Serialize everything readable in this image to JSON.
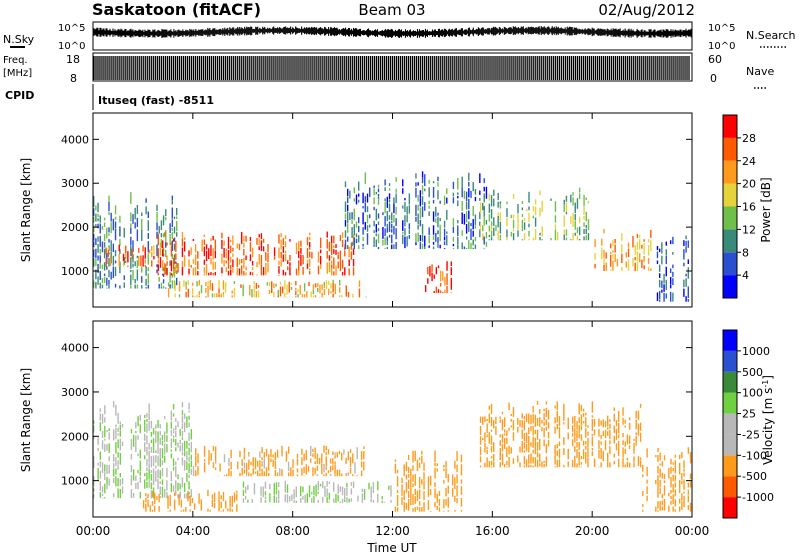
{
  "header": {
    "station": "Saskatoon (fitACF)",
    "beam": "Beam 03",
    "date": "02/Aug/2012"
  },
  "strips": {
    "nsky_label": "N.Sky",
    "nsky_ticks": [
      "10^5",
      "10^0"
    ],
    "nsearch_label": "N.Search",
    "nsearch_ticks": [
      "10^5",
      "10^0"
    ],
    "freq_label_line1": "Freq.",
    "freq_label_line2": "[MHz]",
    "freq_ticks": [
      "18",
      "8"
    ],
    "nave_label": "Nave",
    "nave_ticks": [
      "60",
      "0"
    ],
    "cpid_label": "CPID",
    "cpid_value": "Ituseq (fast) -8511"
  },
  "colors": {
    "power_scale": [
      "#0000ff",
      "#2a4fd0",
      "#3a8a7a",
      "#6fbf4a",
      "#e6d33a",
      "#ff9a1a",
      "#ff5a00",
      "#ff0000"
    ],
    "velocity_scale": [
      "#ff0000",
      "#ff5a00",
      "#ff9a1a",
      "#b8b8b8",
      "#b8b8b8",
      "#6fd040",
      "#3a8a3a",
      "#2a4fd0",
      "#0000ff"
    ]
  },
  "chart_data": [
    {
      "type": "heatmap",
      "title": "",
      "xlabel": "Time UT",
      "ylabel": "Slant Range [km]",
      "x_ticks": [
        "00:00",
        "04:00",
        "08:00",
        "12:00",
        "16:00",
        "20:00",
        "00:00"
      ],
      "xlim_hours": [
        0,
        24
      ],
      "y_ticks": [
        "1000",
        "2000",
        "3000",
        "4000"
      ],
      "ylim_km": [
        180,
        4600
      ],
      "colorbar": {
        "label": "Power [dB]",
        "ticks": [
          "4",
          "8",
          "12",
          "16",
          "20",
          "24",
          "28"
        ],
        "range": [
          0,
          32
        ]
      },
      "echo_regions": [
        {
          "t_start": 0,
          "t_end": 3.5,
          "range_low": 600,
          "range_high": 2800,
          "power": 10
        },
        {
          "t_start": 0.5,
          "t_end": 2.5,
          "range_low": 1100,
          "range_high": 1600,
          "power": 24
        },
        {
          "t_start": 2.5,
          "t_end": 10.5,
          "range_low": 900,
          "range_high": 1900,
          "power": 26
        },
        {
          "t_start": 3,
          "t_end": 11,
          "range_low": 400,
          "range_high": 800,
          "power": 20
        },
        {
          "t_start": 10,
          "t_end": 16,
          "range_low": 1500,
          "range_high": 3300,
          "power": 8
        },
        {
          "t_start": 13.3,
          "t_end": 14.5,
          "range_low": 500,
          "range_high": 1300,
          "power": 26
        },
        {
          "t_start": 15.5,
          "t_end": 20,
          "range_low": 1700,
          "range_high": 2900,
          "power": 14
        },
        {
          "t_start": 20,
          "t_end": 22.5,
          "range_low": 1000,
          "range_high": 2000,
          "power": 22
        },
        {
          "t_start": 22.5,
          "t_end": 24,
          "range_low": 300,
          "range_high": 2000,
          "power": 6
        }
      ]
    },
    {
      "type": "heatmap",
      "title": "",
      "xlabel": "Time UT",
      "ylabel": "Slant Range [km]",
      "x_ticks": [
        "00:00",
        "04:00",
        "08:00",
        "12:00",
        "16:00",
        "20:00",
        "00:00"
      ],
      "xlim_hours": [
        0,
        24
      ],
      "y_ticks": [
        "1000",
        "2000",
        "3000",
        "4000"
      ],
      "ylim_km": [
        180,
        4600
      ],
      "colorbar": {
        "label": "Velocity [m s^-1]",
        "ticks": [
          "1000",
          "500",
          "100",
          "25",
          "-25",
          "-100",
          "-500",
          "-1000"
        ]
      },
      "echo_regions": [
        {
          "t_start": 0,
          "t_end": 4,
          "range_low": 600,
          "range_high": 2800,
          "velocity": 0
        },
        {
          "t_start": 2,
          "t_end": 6,
          "range_low": 300,
          "range_high": 800,
          "velocity": -300
        },
        {
          "t_start": 4,
          "t_end": 11,
          "range_low": 1100,
          "range_high": 1800,
          "velocity": -150
        },
        {
          "t_start": 6,
          "t_end": 12,
          "range_low": 500,
          "range_high": 1000,
          "velocity": 0
        },
        {
          "t_start": 12,
          "t_end": 15,
          "range_low": 300,
          "range_high": 1700,
          "velocity": -200
        },
        {
          "t_start": 15.5,
          "t_end": 22,
          "range_low": 1300,
          "range_high": 2800,
          "velocity": -400
        },
        {
          "t_start": 22,
          "t_end": 24,
          "range_low": 300,
          "range_high": 1800,
          "velocity": -200
        }
      ]
    }
  ]
}
